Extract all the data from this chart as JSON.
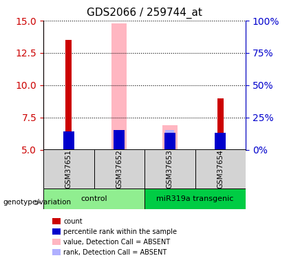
{
  "title": "GDS2066 / 259744_at",
  "samples": [
    "GSM37651",
    "GSM37652",
    "GSM37653",
    "GSM37654"
  ],
  "groups": [
    "control",
    "control",
    "miR319a transgenic",
    "miR319a transgenic"
  ],
  "group_labels": [
    "control",
    "miR319a transgenic"
  ],
  "group_colors": [
    "#90EE90",
    "#00CC44"
  ],
  "ylim_left": [
    5,
    15
  ],
  "ylim_right": [
    0,
    100
  ],
  "yticks_left": [
    5,
    7.5,
    10,
    12.5,
    15
  ],
  "yticks_right": [
    0,
    25,
    50,
    75,
    100
  ],
  "ytick_labels_right": [
    "0%",
    "25%",
    "50%",
    "75%",
    "100%"
  ],
  "red_values": [
    13.5,
    5.0,
    5.0,
    9.0
  ],
  "blue_values": [
    6.4,
    6.5,
    6.3,
    6.3
  ],
  "pink_values": [
    5.0,
    14.8,
    6.9,
    5.0
  ],
  "lavender_values": [
    5.0,
    6.5,
    6.5,
    5.0
  ],
  "bar_width": 0.12,
  "bar_bottom": 5.0,
  "red_color": "#CC0000",
  "blue_color": "#0000CC",
  "pink_color": "#FFB6C1",
  "lavender_color": "#B0B0FF",
  "legend_items": [
    {
      "label": "count",
      "color": "#CC0000"
    },
    {
      "label": "percentile rank within the sample",
      "color": "#0000CC"
    },
    {
      "label": "value, Detection Call = ABSENT",
      "color": "#FFB6C1"
    },
    {
      "label": "rank, Detection Call = ABSENT",
      "color": "#B0B0FF"
    }
  ],
  "background_color": "#FFFFFF",
  "plot_bg_color": "#FFFFFF",
  "sample_bg_color": "#D3D3D3",
  "left_axis_color": "#CC0000",
  "right_axis_color": "#0000CC"
}
